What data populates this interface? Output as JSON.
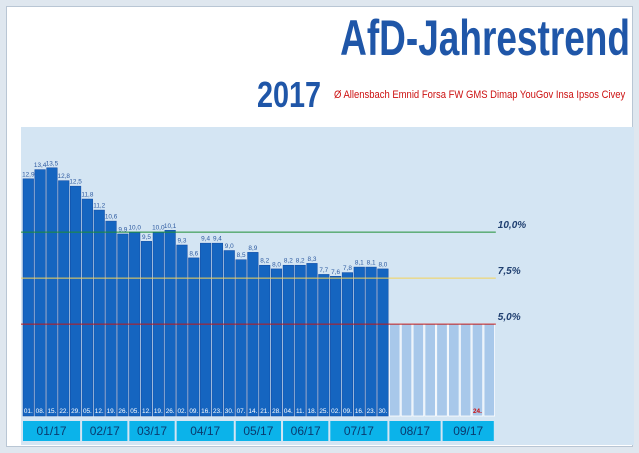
{
  "header": {
    "title": "AfD-Jahrestrend",
    "year": "2017",
    "subtitle": "Ø Allensbach Emnid Forsa FW GMS Dimap YouGov Insa Ipsos Civey"
  },
  "colors": {
    "bar": "#1565c0",
    "bar_edge": "#0d47a1",
    "future_bar": "#a8c8ea",
    "panel": "#d4e5f3",
    "month_box": "#0bb3ea",
    "month_text": "#0b3a6e",
    "title": "#1f56a8",
    "accent_red": "#cc1010"
  },
  "chart_data": {
    "type": "bar",
    "title": "AfD-Jahrestrend",
    "subtitle": "Ø Allensbach Emnid Forsa FW GMS Dimap YouGov Insa Ipsos Civey",
    "xlabel": "",
    "ylabel": "",
    "ylim": [
      0,
      15.5
    ],
    "grid": false,
    "days": [
      "01.",
      "08.",
      "15.",
      "22.",
      "29.",
      "05.",
      "12.",
      "19.",
      "26.",
      "05.",
      "12.",
      "19.",
      "26.",
      "02.",
      "09.",
      "16.",
      "23.",
      "30.",
      "07.",
      "14.",
      "21.",
      "28.",
      "04.",
      "11.",
      "18.",
      "25.",
      "02.",
      "09.",
      "16.",
      "23.",
      "30."
    ],
    "values": [
      12.9,
      13.4,
      13.5,
      12.8,
      12.5,
      11.8,
      11.2,
      10.6,
      9.9,
      10.0,
      9.5,
      10.0,
      10.1,
      9.3,
      8.6,
      9.4,
      9.4,
      9.0,
      8.5,
      8.9,
      8.2,
      8.0,
      8.2,
      8.2,
      8.3,
      7.7,
      7.6,
      7.8,
      8.1,
      8.1,
      8.0
    ],
    "value_labels": [
      "12,9",
      "13,4",
      "13,5",
      "12,8",
      "12,5",
      "11,8",
      "11,2",
      "10,6",
      "9,9",
      "10,0",
      "9,5",
      "10,0",
      "10,1",
      "9,3",
      "8,6",
      "9,4",
      "9,4",
      "9,0",
      "8,5",
      "8,9",
      "8,2",
      "8,0",
      "8,2",
      "8,2",
      "8,3",
      "7,7",
      "7,6",
      "7,8",
      "8,1",
      "8,1",
      "8,0"
    ],
    "month_spans": [
      5,
      4,
      4,
      5,
      4,
      4,
      5
    ],
    "months": [
      "01/17",
      "02/17",
      "03/17",
      "04/17",
      "05/17",
      "06/17",
      "07/17",
      "08/17",
      "09/17"
    ],
    "future_bars": 9,
    "future_value": 5.0,
    "future_marker": {
      "index": 7,
      "label": "24."
    },
    "reference_lines": [
      {
        "value": 10.0,
        "label": "10,0%",
        "color": "#1e8f35"
      },
      {
        "value": 7.5,
        "label": "7,5%",
        "color": "#f3d35a"
      },
      {
        "value": 5.0,
        "label": "5,0%",
        "color": "#c01818"
      }
    ]
  }
}
